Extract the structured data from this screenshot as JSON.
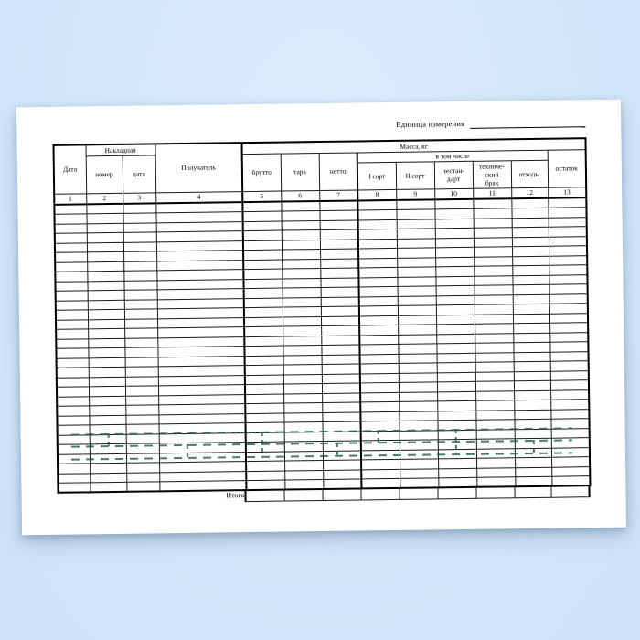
{
  "page": {
    "unit_label": "Единица измерения"
  },
  "table": {
    "col_date": "Дата",
    "invoice_group": "Накладная",
    "col_invoice_number": "номер",
    "col_invoice_date": "дата",
    "col_recipient": "Получатель",
    "mass_group": "Масса, кг",
    "col_gross": "брутто",
    "col_tare": "тара",
    "col_net": "нетто",
    "including_group": "в том числе",
    "col_grade1": "I сорт",
    "col_grade2": "II сорт",
    "col_substandard": "нестан-\nдарт",
    "col_technical_defect": "техниче-\nский\nбрак",
    "col_waste": "отходы",
    "col_remainder": "остаток",
    "column_numbers": [
      "1",
      "2",
      "3",
      "4",
      "5",
      "6",
      "7",
      "8",
      "9",
      "10",
      "11",
      "12",
      "13"
    ],
    "body_row_count": 30,
    "totals_label": "Итого",
    "totals_cell_count": 9
  },
  "colors": {
    "background_blue": "#d4e8fb",
    "paper": "#ffffff",
    "grid_line": "#1a1a1a",
    "watermark_green": "#1d5e38"
  }
}
